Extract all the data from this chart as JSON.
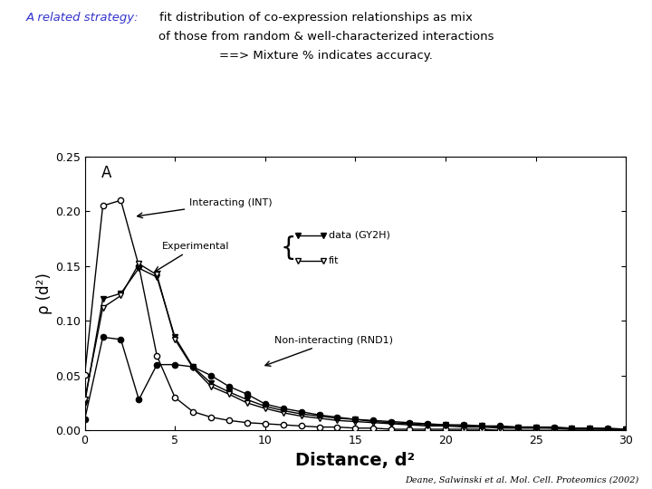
{
  "title_prefix": "A related strategy:",
  "title_rest_line1": "  fit distribution of co-expression relationships as mix",
  "title_line2": "        of those from random & well-characterized interactions",
  "title_line3": "                    ==> Mixture % indicates accuracy.",
  "title_color_prefix": "#3333cc",
  "title_color_rest": "#000000",
  "xlabel": "Distance, d²",
  "ylabel": "ρ (d²)",
  "xlim": [
    0,
    30
  ],
  "ylim": [
    0,
    0.25
  ],
  "citation": "Deane, Salwinski et al. Mol. Cell. Proteomics (2002)",
  "INT_x": [
    0,
    1,
    2,
    3,
    4,
    5,
    6,
    7,
    8,
    9,
    10,
    11,
    12,
    13,
    14,
    15,
    16,
    17,
    18,
    19,
    20,
    21,
    22,
    23,
    24,
    25,
    26,
    27,
    28,
    29,
    30
  ],
  "INT_y": [
    0.051,
    0.205,
    0.21,
    0.15,
    0.068,
    0.03,
    0.017,
    0.012,
    0.009,
    0.007,
    0.006,
    0.005,
    0.004,
    0.003,
    0.003,
    0.002,
    0.002,
    0.001,
    0.001,
    0.001,
    0.001,
    0.001,
    0.001,
    0.0,
    0.0,
    0.0,
    0.0,
    0.0,
    0.0,
    0.0,
    0.0
  ],
  "GY2H_x": [
    0,
    1,
    2,
    3,
    4,
    5,
    6,
    7,
    8,
    9,
    10,
    11,
    12,
    13,
    14,
    15,
    16,
    17,
    18,
    19,
    20,
    21,
    22,
    23,
    24,
    25,
    26,
    27,
    28,
    29,
    30
  ],
  "GY2H_y": [
    0.025,
    0.12,
    0.125,
    0.148,
    0.14,
    0.085,
    0.058,
    0.043,
    0.035,
    0.028,
    0.022,
    0.018,
    0.015,
    0.013,
    0.011,
    0.01,
    0.008,
    0.007,
    0.006,
    0.005,
    0.005,
    0.004,
    0.004,
    0.003,
    0.003,
    0.003,
    0.002,
    0.002,
    0.002,
    0.001,
    0.001
  ],
  "fit_x": [
    0,
    1,
    2,
    3,
    4,
    5,
    6,
    7,
    8,
    9,
    10,
    11,
    12,
    13,
    14,
    15,
    16,
    17,
    18,
    19,
    20,
    21,
    22,
    23,
    24,
    25,
    26,
    27,
    28,
    29,
    30
  ],
  "fit_y": [
    0.028,
    0.112,
    0.123,
    0.152,
    0.142,
    0.083,
    0.057,
    0.04,
    0.033,
    0.025,
    0.02,
    0.016,
    0.013,
    0.011,
    0.009,
    0.008,
    0.007,
    0.006,
    0.005,
    0.004,
    0.004,
    0.003,
    0.003,
    0.002,
    0.002,
    0.002,
    0.002,
    0.001,
    0.001,
    0.001,
    0.001
  ],
  "RND1_x": [
    0,
    1,
    2,
    3,
    4,
    5,
    6,
    7,
    8,
    9,
    10,
    11,
    12,
    13,
    14,
    15,
    16,
    17,
    18,
    19,
    20,
    21,
    22,
    23,
    24,
    25,
    26,
    27,
    28,
    29,
    30
  ],
  "RND1_y": [
    0.01,
    0.085,
    0.083,
    0.028,
    0.06,
    0.06,
    0.058,
    0.05,
    0.04,
    0.033,
    0.024,
    0.02,
    0.017,
    0.014,
    0.012,
    0.01,
    0.009,
    0.008,
    0.007,
    0.006,
    0.005,
    0.005,
    0.004,
    0.004,
    0.003,
    0.003,
    0.003,
    0.002,
    0.002,
    0.002,
    0.001
  ],
  "panel_label": "A",
  "int_label": "Interacting (INT)",
  "exp_label": "Experimental",
  "data_label": "data (GY2H)",
  "fit_label": "fit",
  "rnd_label": "Non-interacting (RND1)"
}
